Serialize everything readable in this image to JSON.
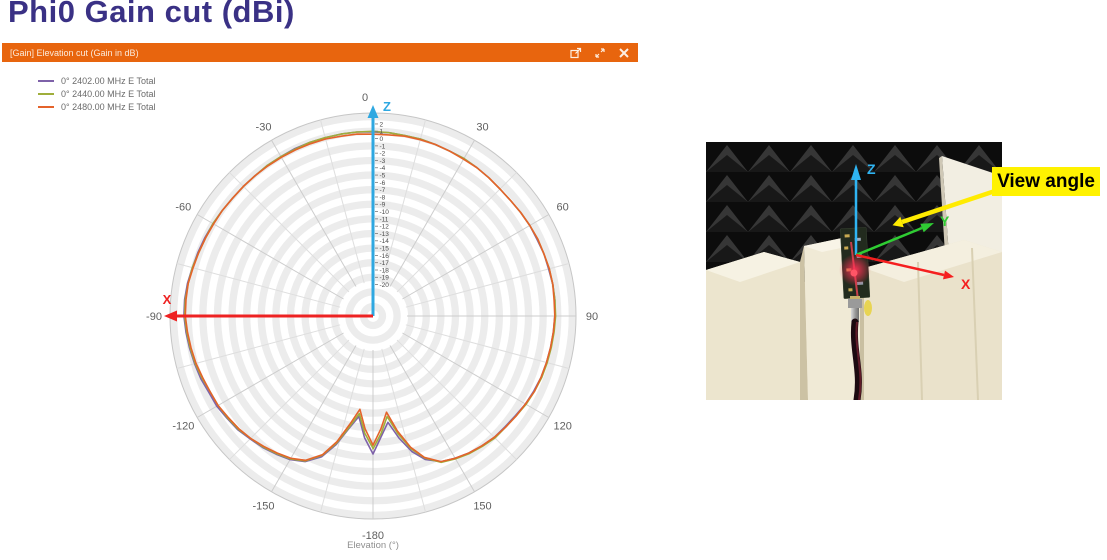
{
  "slide": {
    "title": "Phi0 Gain cut (dBi)",
    "title_color": "#3A3185"
  },
  "window": {
    "title": "[Gain] Elevation cut (Gain in dB)",
    "titlebar_color": "#E8650E",
    "icons": [
      "popout-icon",
      "collapse-icon",
      "close-icon"
    ]
  },
  "legend": {
    "items": [
      {
        "label": "0° 2402.00 MHz E Total",
        "color": "#7E62A9"
      },
      {
        "label": "0° 2440.00 MHz E Total",
        "color": "#9FAE3B"
      },
      {
        "label": "0° 2480.00 MHz E Total",
        "color": "#E4632B"
      }
    ]
  },
  "chart_data": {
    "type": "polar-line",
    "title": "[Gain] Elevation cut (Gain in dB)",
    "angle_label": "Elevation (°)",
    "angle_ticks": [
      0,
      30,
      60,
      90,
      120,
      150,
      -180,
      -150,
      -120,
      -90,
      -60,
      -30
    ],
    "radial_ticks": [
      2,
      1,
      0,
      -1,
      -2,
      -3,
      -4,
      -5,
      -6,
      -7,
      -8,
      -9,
      -10,
      -11,
      -12,
      -13,
      -14,
      -15,
      -16,
      -17,
      -18,
      -19,
      -20
    ],
    "radial_axis": {
      "outer_value": 3.5,
      "center_value": -24.3,
      "tick_step": 1,
      "unit": "dB"
    },
    "grid": {
      "ring_step_db": 1,
      "spoke_step_deg": 15
    },
    "overlay_axes": [
      {
        "label": "Z",
        "angle_deg": 0,
        "color": "#2FA8E1"
      },
      {
        "label": "X",
        "angle_deg": -90,
        "color": "#EE2222"
      }
    ],
    "elevations_deg": [
      -180,
      -176,
      -172,
      -168,
      -164,
      -160,
      -155,
      -150,
      -145,
      -140,
      -135,
      -130,
      -125,
      -120,
      -115,
      -110,
      -105,
      -100,
      -95,
      -90,
      -85,
      -80,
      -75,
      -70,
      -65,
      -60,
      -55,
      -50,
      -45,
      -40,
      -35,
      -30,
      -25,
      -20,
      -15,
      -10,
      -5,
      0,
      5,
      10,
      15,
      20,
      25,
      30,
      35,
      40,
      45,
      50,
      55,
      60,
      65,
      70,
      75,
      80,
      85,
      90,
      95,
      100,
      105,
      110,
      115,
      120,
      125,
      130,
      135,
      140,
      145,
      150,
      155,
      160,
      164,
      168,
      172,
      176,
      180
    ],
    "series": [
      {
        "name": "0° 2402.00 MHz E Total",
        "color": "#7E62A9",
        "gains_db": [
          -5.4,
          -7.6,
          -10.4,
          -8.6,
          -6.0,
          -3.8,
          -2.3,
          -1.6,
          -1.2,
          -0.8,
          -0.5,
          -0.1,
          0.1,
          0.4,
          0.5,
          0.8,
          1.0,
          1.2,
          1.4,
          1.6,
          1.6,
          1.5,
          1.3,
          1.2,
          1.1,
          1.0,
          0.9,
          0.8,
          0.8,
          0.8,
          0.9,
          0.9,
          1.0,
          1.0,
          1.0,
          1.0,
          1.0,
          0.9,
          0.9,
          0.8,
          0.8,
          0.7,
          0.6,
          0.6,
          0.5,
          0.4,
          0.3,
          0.3,
          0.4,
          0.5,
          0.5,
          0.6,
          0.6,
          0.7,
          0.7,
          0.6,
          0.5,
          0.4,
          0.3,
          0.2,
          0.0,
          -0.2,
          -0.5,
          -0.7,
          -0.8,
          -1.1,
          -1.4,
          -1.8,
          -2.3,
          -3.4,
          -5.0,
          -7.2,
          -9.6,
          -7.8,
          -5.4
        ]
      },
      {
        "name": "0° 2440.00 MHz E Total",
        "color": "#9FAE3B",
        "gains_db": [
          -6.2,
          -8.2,
          -10.8,
          -8.8,
          -6.2,
          -4.0,
          -2.4,
          -1.7,
          -1.3,
          -0.9,
          -0.6,
          -0.2,
          0.0,
          0.2,
          0.3,
          0.6,
          0.9,
          1.1,
          1.3,
          1.5,
          1.5,
          1.4,
          1.3,
          1.1,
          1.0,
          1.0,
          0.9,
          0.8,
          0.8,
          0.8,
          0.9,
          0.9,
          0.9,
          1.0,
          1.0,
          1.0,
          1.0,
          1.0,
          0.9,
          0.8,
          0.8,
          0.7,
          0.6,
          0.6,
          0.5,
          0.4,
          0.3,
          0.3,
          0.4,
          0.5,
          0.6,
          0.6,
          0.7,
          0.7,
          0.7,
          0.7,
          0.6,
          0.5,
          0.4,
          0.3,
          0.1,
          -0.1,
          -0.4,
          -0.6,
          -0.7,
          -1.0,
          -1.3,
          -1.7,
          -2.2,
          -3.6,
          -5.4,
          -7.8,
          -10.4,
          -8.2,
          -6.1
        ]
      },
      {
        "name": "0° 2480.00 MHz E Total",
        "color": "#E4632B",
        "gains_db": [
          -6.6,
          -8.8,
          -11.4,
          -9.2,
          -6.4,
          -4.1,
          -2.5,
          -1.8,
          -1.4,
          -1.0,
          -0.6,
          -0.3,
          -0.1,
          0.2,
          0.3,
          0.5,
          0.8,
          1.0,
          1.2,
          1.4,
          1.4,
          1.4,
          1.2,
          1.1,
          1.0,
          0.9,
          0.9,
          0.8,
          0.8,
          0.8,
          0.8,
          0.8,
          0.8,
          0.8,
          0.8,
          0.7,
          0.7,
          0.6,
          0.6,
          0.7,
          0.7,
          0.7,
          0.6,
          0.5,
          0.5,
          0.4,
          0.3,
          0.3,
          0.4,
          0.5,
          0.6,
          0.6,
          0.7,
          0.7,
          0.6,
          0.6,
          0.5,
          0.4,
          0.3,
          0.2,
          0.1,
          -0.2,
          -0.4,
          -0.6,
          -0.8,
          -1.1,
          -1.4,
          -1.8,
          -2.3,
          -3.7,
          -5.6,
          -8.2,
          -11.0,
          -8.8,
          -6.6
        ]
      }
    ]
  },
  "photo": {
    "view_angle_label": "View angle",
    "view_angle_bg": "#FFF200",
    "axes": [
      {
        "label": "Z",
        "color": "#2FB4F2"
      },
      {
        "label": "Y",
        "color": "#2FCC33"
      },
      {
        "label": "X",
        "color": "#F51F1F"
      }
    ]
  }
}
